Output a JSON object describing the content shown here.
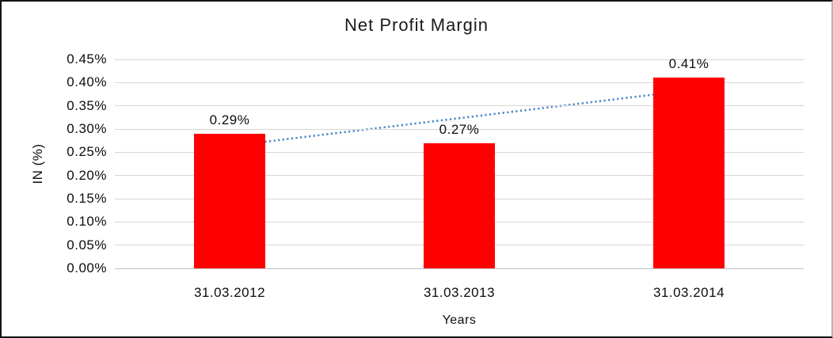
{
  "chart_data": {
    "type": "bar",
    "title": "Net Profit Margin",
    "categories": [
      "31.03.2012",
      "31.03.2013",
      "31.03.2014"
    ],
    "values": [
      0.29,
      0.27,
      0.41
    ],
    "data_labels": [
      "0.29%",
      "0.27%",
      "0.41%"
    ],
    "xlabel": "Years",
    "ylabel": "IN (%)",
    "ylim": [
      0,
      0.45
    ],
    "ytick_step": 0.05,
    "ytick_labels": [
      "0.00%",
      "0.05%",
      "0.10%",
      "0.15%",
      "0.20%",
      "0.25%",
      "0.30%",
      "0.35%",
      "0.40%",
      "0.45%"
    ],
    "grid": true,
    "legend": "none",
    "colors": {
      "bar": "#ff0000",
      "gridline": "#d6d6d6",
      "axis_line": "#c0c0c0",
      "text": "#0d0d0d",
      "trendline": "#4a86c8"
    },
    "trendline": {
      "type": "linear",
      "style": "dotted"
    }
  }
}
